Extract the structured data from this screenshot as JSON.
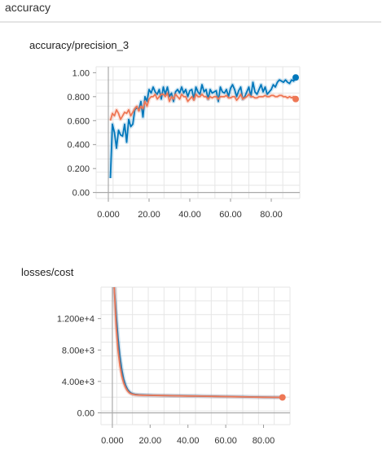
{
  "section": {
    "title": "accuracy"
  },
  "chart_data": [
    {
      "type": "line",
      "title": "accuracy/precision_3",
      "xlabel": "",
      "ylabel": "",
      "xlim": [
        -6,
        94
      ],
      "ylim": [
        -0.05,
        1.05
      ],
      "x_ticks": [
        0,
        20,
        40,
        60,
        80
      ],
      "x_tick_labels": [
        "0.000",
        "20.00",
        "40.00",
        "60.00",
        "80.00"
      ],
      "y_ticks": [
        0,
        0.2,
        0.4,
        0.6,
        0.8,
        1.0
      ],
      "y_tick_labels": [
        "0.00",
        "0.200",
        "0.400",
        "0.600",
        "0.800",
        "1.00"
      ],
      "grid": true,
      "series_colors": [
        "#0077bb",
        "#ee7755"
      ],
      "series": [
        {
          "color": "#0077bb",
          "end_marker": true,
          "x": [
            1,
            2,
            3,
            4,
            5,
            6,
            7,
            8,
            9,
            10,
            11,
            12,
            13,
            14,
            15,
            16,
            17,
            18,
            19,
            20,
            21,
            22,
            23,
            24,
            25,
            26,
            27,
            28,
            29,
            30,
            31,
            32,
            33,
            34,
            35,
            36,
            37,
            38,
            39,
            40,
            41,
            42,
            43,
            44,
            45,
            46,
            47,
            48,
            49,
            50,
            51,
            52,
            53,
            54,
            55,
            56,
            57,
            58,
            59,
            60,
            61,
            62,
            63,
            64,
            65,
            66,
            67,
            68,
            69,
            70,
            71,
            72,
            73,
            74,
            75,
            76,
            77,
            78,
            79,
            80,
            81,
            82,
            83,
            84,
            85,
            86,
            87,
            88,
            89,
            90,
            91,
            92
          ],
          "values": [
            0.12,
            0.57,
            0.5,
            0.37,
            0.52,
            0.48,
            0.47,
            0.57,
            0.42,
            0.61,
            0.55,
            0.57,
            0.69,
            0.71,
            0.69,
            0.76,
            0.63,
            0.8,
            0.76,
            0.86,
            0.83,
            0.88,
            0.84,
            0.82,
            0.86,
            0.78,
            0.88,
            0.82,
            0.88,
            0.8,
            0.83,
            0.76,
            0.84,
            0.86,
            0.83,
            0.88,
            0.83,
            0.86,
            0.8,
            0.85,
            0.86,
            0.78,
            0.88,
            0.84,
            0.82,
            0.9,
            0.84,
            0.86,
            0.78,
            0.86,
            0.83,
            0.84,
            0.85,
            0.76,
            0.88,
            0.84,
            0.83,
            0.86,
            0.8,
            0.87,
            0.9,
            0.86,
            0.8,
            0.85,
            0.88,
            0.78,
            0.8,
            0.84,
            0.88,
            0.8,
            0.92,
            0.84,
            0.82,
            0.86,
            0.9,
            0.84,
            0.88,
            0.82,
            0.84,
            0.86,
            0.9,
            0.88,
            0.92,
            0.94,
            0.93,
            0.92,
            0.94,
            0.92,
            0.91,
            0.94,
            0.93,
            0.96
          ]
        },
        {
          "color": "#ee7755",
          "end_marker": true,
          "x": [
            1,
            2,
            3,
            4,
            5,
            6,
            7,
            8,
            9,
            10,
            11,
            12,
            13,
            14,
            15,
            16,
            17,
            18,
            19,
            20,
            21,
            22,
            23,
            24,
            25,
            26,
            27,
            28,
            29,
            30,
            31,
            32,
            33,
            34,
            35,
            36,
            37,
            38,
            39,
            40,
            41,
            42,
            43,
            44,
            45,
            46,
            47,
            48,
            49,
            50,
            51,
            52,
            53,
            54,
            55,
            56,
            57,
            58,
            59,
            60,
            61,
            62,
            63,
            64,
            65,
            66,
            67,
            68,
            69,
            70,
            71,
            72,
            73,
            74,
            75,
            76,
            77,
            78,
            79,
            80,
            81,
            82,
            83,
            84,
            85,
            86,
            87,
            88,
            89,
            90,
            91,
            92
          ],
          "values": [
            0.6,
            0.66,
            0.64,
            0.69,
            0.66,
            0.61,
            0.64,
            0.67,
            0.66,
            0.69,
            0.64,
            0.67,
            0.7,
            0.72,
            0.68,
            0.72,
            0.7,
            0.76,
            0.72,
            0.78,
            0.8,
            0.8,
            0.82,
            0.78,
            0.8,
            0.82,
            0.82,
            0.8,
            0.83,
            0.76,
            0.8,
            0.78,
            0.82,
            0.8,
            0.78,
            0.82,
            0.8,
            0.8,
            0.76,
            0.78,
            0.8,
            0.77,
            0.82,
            0.8,
            0.8,
            0.82,
            0.8,
            0.8,
            0.78,
            0.8,
            0.79,
            0.8,
            0.8,
            0.78,
            0.8,
            0.8,
            0.8,
            0.81,
            0.79,
            0.79,
            0.8,
            0.8,
            0.77,
            0.79,
            0.82,
            0.78,
            0.79,
            0.8,
            0.82,
            0.8,
            0.8,
            0.79,
            0.79,
            0.8,
            0.8,
            0.8,
            0.81,
            0.8,
            0.8,
            0.81,
            0.81,
            0.8,
            0.8,
            0.81,
            0.81,
            0.8,
            0.8,
            0.79,
            0.8,
            0.79,
            0.8,
            0.78
          ]
        }
      ]
    },
    {
      "type": "line",
      "title": "losses/cost",
      "xlabel": "",
      "ylabel": "",
      "xlim": [
        -6,
        94
      ],
      "ylim": [
        -1500,
        16000
      ],
      "x_ticks": [
        0,
        20,
        40,
        60,
        80
      ],
      "x_tick_labels": [
        "0.000",
        "20.00",
        "40.00",
        "60.00",
        "80.00"
      ],
      "y_ticks": [
        0,
        4000,
        8000,
        12000
      ],
      "y_tick_labels": [
        "0.00",
        "4.00e+3",
        "8.00e+3",
        "1.200e+4"
      ],
      "grid": true,
      "series_colors": [
        "#0077bb",
        "#ee7755"
      ],
      "series": [
        {
          "color": "#0077bb",
          "end_marker": false,
          "x": [
            1,
            2,
            3,
            4,
            5,
            6,
            7,
            8,
            9,
            10,
            11,
            12,
            14,
            16,
            18,
            20,
            25,
            30,
            35,
            40,
            45,
            50,
            55,
            60,
            65,
            70,
            75,
            80,
            85,
            90
          ],
          "values": [
            16000,
            12500,
            9500,
            7200,
            5500,
            4300,
            3500,
            3000,
            2700,
            2500,
            2400,
            2350,
            2300,
            2280,
            2260,
            2250,
            2220,
            2200,
            2180,
            2160,
            2140,
            2120,
            2100,
            2080,
            2060,
            2040,
            2020,
            2000,
            1990,
            1980
          ]
        },
        {
          "color": "#ee7755",
          "end_marker": true,
          "x": [
            1,
            2,
            3,
            4,
            5,
            6,
            7,
            8,
            9,
            10,
            11,
            12,
            14,
            16,
            18,
            20,
            25,
            30,
            35,
            40,
            45,
            50,
            55,
            60,
            65,
            70,
            75,
            80,
            85,
            90
          ],
          "values": [
            16000,
            11000,
            8000,
            6000,
            4700,
            3800,
            3200,
            2800,
            2550,
            2420,
            2350,
            2300,
            2270,
            2250,
            2240,
            2230,
            2210,
            2190,
            2170,
            2150,
            2130,
            2110,
            2090,
            2070,
            2050,
            2030,
            2010,
            1990,
            1980,
            1970
          ]
        }
      ]
    }
  ]
}
